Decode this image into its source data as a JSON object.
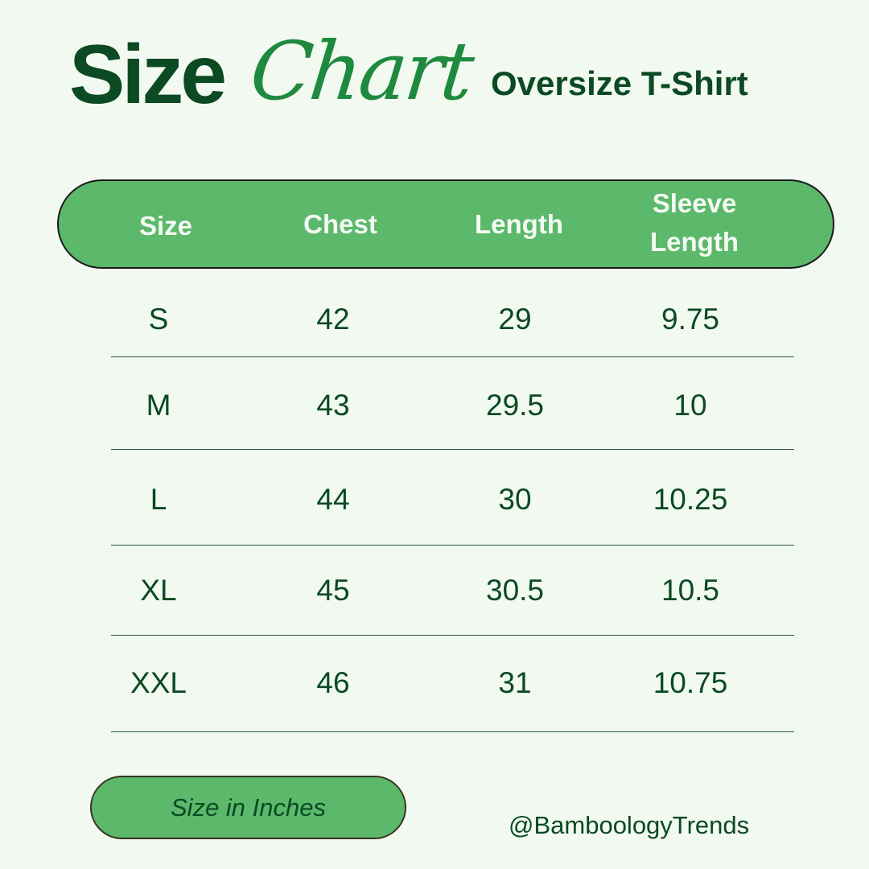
{
  "title": {
    "bold": "Size",
    "script": "Chart"
  },
  "subtitle": "Oversize T-Shirt",
  "table": {
    "headers": [
      "Size",
      "Chest",
      "Length",
      "Sleeve Length"
    ],
    "rows": [
      [
        "S",
        "42",
        "29",
        "9.75"
      ],
      [
        "M",
        "43",
        "29.5",
        "10"
      ],
      [
        "L",
        "44",
        "30",
        "10.25"
      ],
      [
        "XL",
        "45",
        "30.5",
        "10.5"
      ],
      [
        "XXL",
        "46",
        "31",
        "10.75"
      ]
    ]
  },
  "footer": {
    "units": "Size in Inches",
    "handle": "@BamboologyTrends"
  },
  "colors": {
    "background": "#f1f9f1",
    "dark_green": "#0b4a22",
    "header_green": "#5cb86b",
    "script_green": "#1f8a3f"
  }
}
